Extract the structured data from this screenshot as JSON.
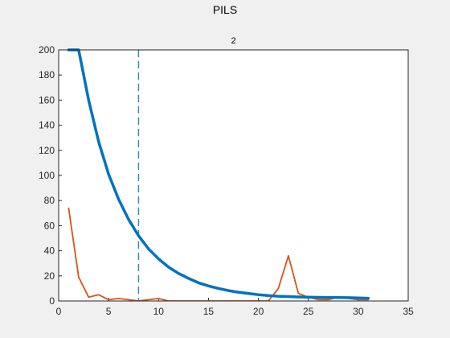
{
  "window": {
    "figure_title": "PILS"
  },
  "chart_data": {
    "type": "line",
    "title": "2",
    "xlabel": "",
    "ylabel": "",
    "xlim": [
      0,
      35
    ],
    "ylim": [
      0,
      200
    ],
    "xticks": [
      0,
      5,
      10,
      15,
      20,
      25,
      30,
      35
    ],
    "yticks": [
      0,
      20,
      40,
      60,
      80,
      100,
      120,
      140,
      160,
      180,
      200
    ],
    "grid": false,
    "legend": "none",
    "colors": {
      "series_blue": "#0072bd",
      "series_orange": "#d95319",
      "marker_line": "#2f8fb5",
      "axes_bg": "#ffffff",
      "figure_bg": "#f0f0f0"
    },
    "vertical_marker_x": 8,
    "series": [
      {
        "x": [
          1,
          2,
          3,
          4,
          5,
          6,
          7,
          8,
          9,
          10,
          11,
          12,
          13,
          14,
          15,
          16,
          17,
          18,
          19,
          20,
          21,
          22,
          23,
          24,
          25,
          26,
          27,
          28,
          29,
          30,
          31
        ],
        "values": [
          200,
          200,
          160,
          127,
          101,
          81,
          65,
          52,
          41.5,
          33.5,
          27,
          22,
          18,
          14.5,
          12,
          10,
          8.3,
          7,
          6,
          5,
          4.3,
          3.8,
          3.5,
          3.2,
          3.0,
          2.9,
          2.8,
          2.7,
          2.6,
          2.4,
          2.2
        ]
      },
      {
        "x": [
          1,
          2,
          3,
          4,
          5,
          6,
          7,
          8,
          9,
          10,
          11,
          12,
          13,
          14,
          15,
          16,
          17,
          18,
          19,
          20,
          21,
          22,
          23,
          24,
          25,
          26,
          27,
          28,
          29,
          30,
          31
        ],
        "values": [
          74,
          19,
          3,
          5,
          1,
          2,
          1,
          0,
          1,
          2,
          0,
          0,
          0,
          0,
          0,
          0,
          0,
          0,
          0,
          0,
          0,
          10,
          36,
          6,
          3,
          1,
          1,
          3,
          2,
          1,
          1
        ]
      }
    ]
  }
}
